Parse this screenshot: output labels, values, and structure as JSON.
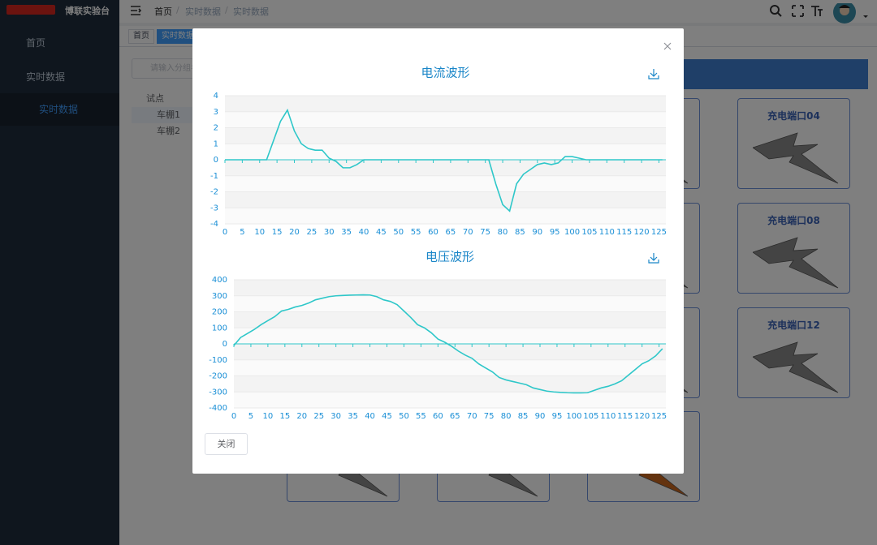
{
  "sidebar": {
    "brand": "博联实验台",
    "menu": [
      "首页",
      "实时数据",
      "实时数据"
    ]
  },
  "header": {
    "breadcrumb": [
      "首页",
      "实时数据",
      "实时数据"
    ]
  },
  "tags": [
    "首页",
    "实时数据"
  ],
  "search_placeholder": "请输入分组名",
  "tree": {
    "root": "试点",
    "children": [
      "车棚1",
      "车棚2"
    ]
  },
  "cards": [
    "充电端口04",
    "充电端口08",
    "充电端口12"
  ],
  "modal": {
    "close_button": "关闭"
  },
  "chart_data": [
    {
      "type": "line",
      "title": "电流波形",
      "color": "#2ec7c9",
      "x": [
        0,
        2,
        4,
        6,
        8,
        10,
        12,
        14,
        16,
        18,
        20,
        22,
        24,
        26,
        28,
        30,
        32,
        34,
        36,
        38,
        40,
        42,
        44,
        46,
        48,
        50,
        52,
        54,
        56,
        58,
        60,
        62,
        64,
        66,
        68,
        70,
        72,
        74,
        76,
        78,
        80,
        82,
        84,
        86,
        88,
        90,
        92,
        94,
        96,
        98,
        100,
        102,
        104,
        106,
        108,
        110,
        112,
        114,
        116,
        118,
        120,
        122,
        124,
        126
      ],
      "values": [
        0,
        0,
        0,
        0,
        0,
        0,
        0,
        1.2,
        2.4,
        3.1,
        1.8,
        1.0,
        0.7,
        0.6,
        0.6,
        0.1,
        -0.1,
        -0.5,
        -0.5,
        -0.3,
        0,
        0,
        0,
        0,
        0,
        0,
        0,
        0,
        0,
        0,
        0,
        0,
        0,
        0,
        0,
        0,
        0,
        0,
        0,
        -1.5,
        -2.8,
        -3.2,
        -1.5,
        -0.9,
        -0.6,
        -0.3,
        -0.2,
        -0.3,
        -0.2,
        0.2,
        0.2,
        0.1,
        0,
        0,
        0,
        0,
        0,
        0,
        0,
        0,
        0,
        0,
        0,
        0
      ],
      "xlim": [
        0,
        127
      ],
      "xticks": [
        0,
        5,
        10,
        15,
        20,
        25,
        30,
        35,
        40,
        45,
        50,
        55,
        60,
        65,
        70,
        75,
        80,
        85,
        90,
        95,
        100,
        105,
        110,
        115,
        120,
        125
      ],
      "ylim": [
        -4,
        4
      ],
      "yticks": [
        -4,
        -3,
        -2,
        -1,
        0,
        1,
        2,
        3,
        4
      ],
      "grid": true
    },
    {
      "type": "line",
      "title": "电压波形",
      "color": "#2ec7c9",
      "x": [
        0,
        2,
        4,
        6,
        8,
        10,
        12,
        14,
        16,
        18,
        20,
        22,
        24,
        26,
        28,
        30,
        32,
        34,
        36,
        38,
        40,
        42,
        44,
        46,
        48,
        50,
        52,
        54,
        56,
        58,
        60,
        62,
        64,
        66,
        68,
        70,
        72,
        74,
        76,
        78,
        80,
        82,
        84,
        86,
        88,
        90,
        92,
        94,
        96,
        98,
        100,
        102,
        104,
        106,
        108,
        110,
        112,
        114,
        116,
        118,
        120,
        122,
        124,
        126
      ],
      "values": [
        -10,
        40,
        65,
        90,
        120,
        145,
        170,
        205,
        215,
        230,
        240,
        255,
        275,
        285,
        295,
        300,
        302,
        304,
        305,
        306,
        305,
        295,
        275,
        265,
        245,
        205,
        165,
        120,
        100,
        70,
        30,
        10,
        -15,
        -45,
        -70,
        -90,
        -125,
        -150,
        -175,
        -210,
        -225,
        -235,
        -245,
        -255,
        -275,
        -285,
        -295,
        -300,
        -303,
        -305,
        -306,
        -306,
        -305,
        -290,
        -275,
        -265,
        -250,
        -230,
        -195,
        -160,
        -125,
        -105,
        -75,
        -30
      ],
      "xlim": [
        0,
        127
      ],
      "xticks": [
        0,
        5,
        10,
        15,
        20,
        25,
        30,
        35,
        40,
        45,
        50,
        55,
        60,
        65,
        70,
        75,
        80,
        85,
        90,
        95,
        100,
        105,
        110,
        115,
        120,
        125
      ],
      "ylim": [
        -400,
        400
      ],
      "yticks": [
        -400,
        -300,
        -200,
        -100,
        0,
        100,
        200,
        300,
        400
      ],
      "grid": true
    }
  ]
}
